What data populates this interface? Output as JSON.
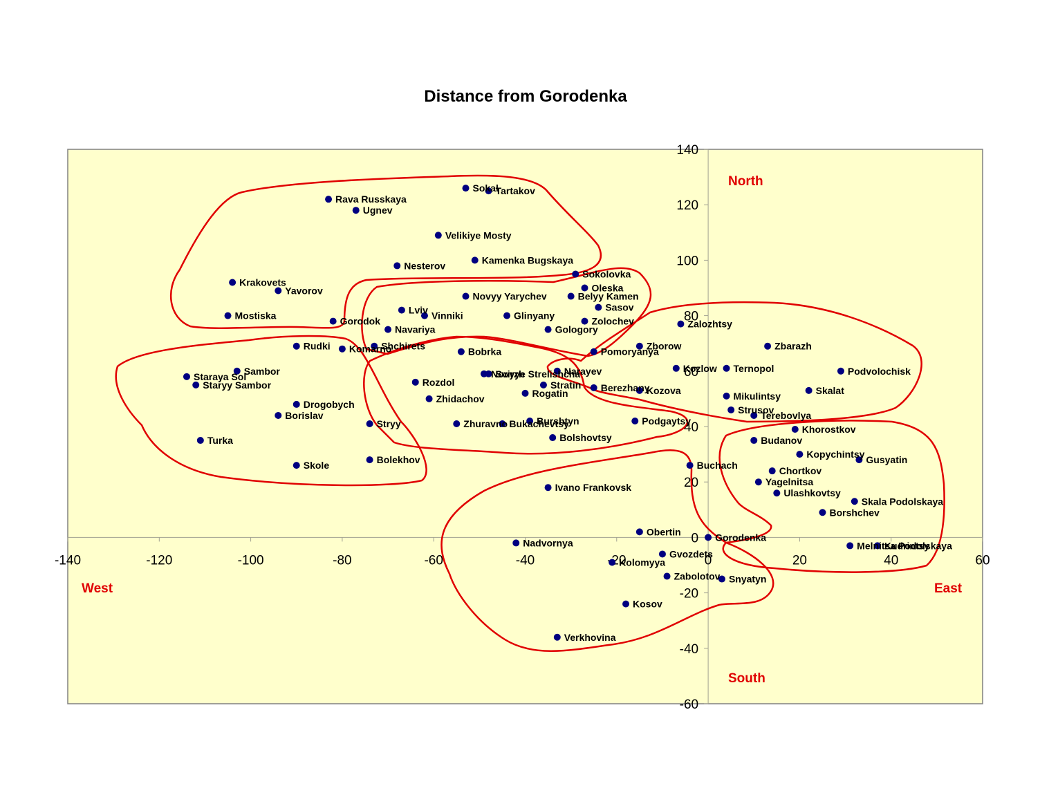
{
  "chart_data": {
    "type": "scatter",
    "title": "Distance from Gorodenka",
    "xlim": [
      -140,
      60
    ],
    "ylim": [
      -60,
      140
    ],
    "x_ticks": [
      -140,
      -120,
      -100,
      -80,
      -60,
      -40,
      -20,
      0,
      20,
      40,
      60
    ],
    "y_ticks": [
      -60,
      -40,
      -20,
      0,
      20,
      40,
      60,
      80,
      100,
      120,
      140
    ],
    "grid": false,
    "colors": {
      "plot_bg": "#ffffcc",
      "marker": "#000080",
      "region": "#e00000",
      "axis": "#a0a090",
      "frame": "#808080"
    },
    "directions": {
      "north": "North",
      "south": "South",
      "east": "East",
      "west": "West"
    },
    "points": [
      {
        "name": "Sokal",
        "x": -53,
        "y": 126
      },
      {
        "name": "Tartakov",
        "x": -48,
        "y": 125
      },
      {
        "name": "Rava Russkaya",
        "x": -83,
        "y": 122
      },
      {
        "name": "Ugnev",
        "x": -77,
        "y": 118
      },
      {
        "name": "Velikiye Mosty",
        "x": -59,
        "y": 109
      },
      {
        "name": "Kamenka Bugskaya",
        "x": -51,
        "y": 100
      },
      {
        "name": "Nesterov",
        "x": -68,
        "y": 98
      },
      {
        "name": "Sokolovka",
        "x": -29,
        "y": 95
      },
      {
        "name": "Krakovets",
        "x": -104,
        "y": 92
      },
      {
        "name": "Oleska",
        "x": -27,
        "y": 90
      },
      {
        "name": "Yavorov",
        "x": -94,
        "y": 89
      },
      {
        "name": "Novyy Yarychev",
        "x": -53,
        "y": 87
      },
      {
        "name": "Belyy Kamen",
        "x": -30,
        "y": 87
      },
      {
        "name": "Sasov",
        "x": -24,
        "y": 83
      },
      {
        "name": "Lviv",
        "x": -67,
        "y": 82
      },
      {
        "name": "Mostiska",
        "x": -105,
        "y": 80
      },
      {
        "name": "Vinniki",
        "x": -62,
        "y": 80
      },
      {
        "name": "Glinyany",
        "x": -44,
        "y": 80
      },
      {
        "name": "Gorodok",
        "x": -82,
        "y": 78
      },
      {
        "name": "Zolochev",
        "x": -27,
        "y": 78
      },
      {
        "name": "Zalozhtsy",
        "x": -6,
        "y": 77
      },
      {
        "name": "Navariya",
        "x": -70,
        "y": 75
      },
      {
        "name": "Gologory",
        "x": -35,
        "y": 75
      },
      {
        "name": "Rudki",
        "x": -90,
        "y": 69
      },
      {
        "name": "Shchirets",
        "x": -73,
        "y": 69
      },
      {
        "name": "Zborow",
        "x": -15,
        "y": 69
      },
      {
        "name": "Zbarazh",
        "x": 13,
        "y": 69
      },
      {
        "name": "Komarno",
        "x": -80,
        "y": 68
      },
      {
        "name": "Bobrka",
        "x": -54,
        "y": 67
      },
      {
        "name": "Pomoryanya",
        "x": -25,
        "y": 67
      },
      {
        "name": "Kozlow",
        "x": -7,
        "y": 61
      },
      {
        "name": "Ternopol",
        "x": 4,
        "y": 61
      },
      {
        "name": "Sambor",
        "x": -103,
        "y": 60
      },
      {
        "name": "Narayev",
        "x": -33,
        "y": 60
      },
      {
        "name": "Podvolochisk",
        "x": 29,
        "y": 60
      },
      {
        "name": "Novyye Strelishcha",
        "x": -49,
        "y": 59
      },
      {
        "name": "Svirzh",
        "x": -48,
        "y": 59
      },
      {
        "name": "Staraya Sol",
        "x": -114,
        "y": 58
      },
      {
        "name": "Rozdol",
        "x": -64,
        "y": 56
      },
      {
        "name": "Stratin",
        "x": -36,
        "y": 55
      },
      {
        "name": "Staryy Sambor",
        "x": -112,
        "y": 55
      },
      {
        "name": "Berezhany",
        "x": -25,
        "y": 54
      },
      {
        "name": "Kozova",
        "x": -15,
        "y": 53
      },
      {
        "name": "Skalat",
        "x": 22,
        "y": 53
      },
      {
        "name": "Rogatin",
        "x": -40,
        "y": 52
      },
      {
        "name": "Mikulintsy",
        "x": 4,
        "y": 51
      },
      {
        "name": "Zhidachov",
        "x": -61,
        "y": 50
      },
      {
        "name": "Drogobych",
        "x": -90,
        "y": 48
      },
      {
        "name": "Strusov",
        "x": 5,
        "y": 46
      },
      {
        "name": "Borislav",
        "x": -94,
        "y": 44
      },
      {
        "name": "Terebovlya",
        "x": 10,
        "y": 44
      },
      {
        "name": "Burshtyn",
        "x": -39,
        "y": 42
      },
      {
        "name": "Stryy",
        "x": -74,
        "y": 41
      },
      {
        "name": "Zhuravno",
        "x": -55,
        "y": 41
      },
      {
        "name": "Bukachevtsy",
        "x": -45,
        "y": 41
      },
      {
        "name": "Podgaytsy",
        "x": -16,
        "y": 42
      },
      {
        "name": "Khorostkov",
        "x": 19,
        "y": 39
      },
      {
        "name": "Bolshovtsy",
        "x": -34,
        "y": 36
      },
      {
        "name": "Turka",
        "x": -111,
        "y": 35
      },
      {
        "name": "Budanov",
        "x": 10,
        "y": 35
      },
      {
        "name": "Kopychintsy",
        "x": 20,
        "y": 30
      },
      {
        "name": "Bolekhov",
        "x": -74,
        "y": 28
      },
      {
        "name": "Gusyatin",
        "x": 33,
        "y": 28
      },
      {
        "name": "Skole",
        "x": -90,
        "y": 26
      },
      {
        "name": "Buchach",
        "x": -4,
        "y": 26
      },
      {
        "name": "Chortkov",
        "x": 14,
        "y": 24
      },
      {
        "name": "Yagelnitsa",
        "x": 11,
        "y": 20
      },
      {
        "name": "Ivano Frankovsk",
        "x": -35,
        "y": 18
      },
      {
        "name": "Ulashkovtsy",
        "x": 15,
        "y": 16
      },
      {
        "name": "Skala Podolskaya",
        "x": 32,
        "y": 13
      },
      {
        "name": "Borshchev",
        "x": 25,
        "y": 9
      },
      {
        "name": "Obertin",
        "x": -15,
        "y": 2
      },
      {
        "name": "Gorodenka",
        "x": 0,
        "y": 0
      },
      {
        "name": "Nadvornya",
        "x": -42,
        "y": -2
      },
      {
        "name": "Melnitsa Podolskaya",
        "x": 31,
        "y": -3
      },
      {
        "name": "Kudrintsy",
        "x": 37,
        "y": -3
      },
      {
        "name": "Gvozdets",
        "x": -10,
        "y": -6
      },
      {
        "name": "Kolomyya",
        "x": -21,
        "y": -9
      },
      {
        "name": "Zabolotov",
        "x": -9,
        "y": -14
      },
      {
        "name": "Snyatyn",
        "x": 3,
        "y": -15
      },
      {
        "name": "Kosov",
        "x": -18,
        "y": -24
      },
      {
        "name": "Verkhovina",
        "x": -33,
        "y": -36
      }
    ]
  }
}
